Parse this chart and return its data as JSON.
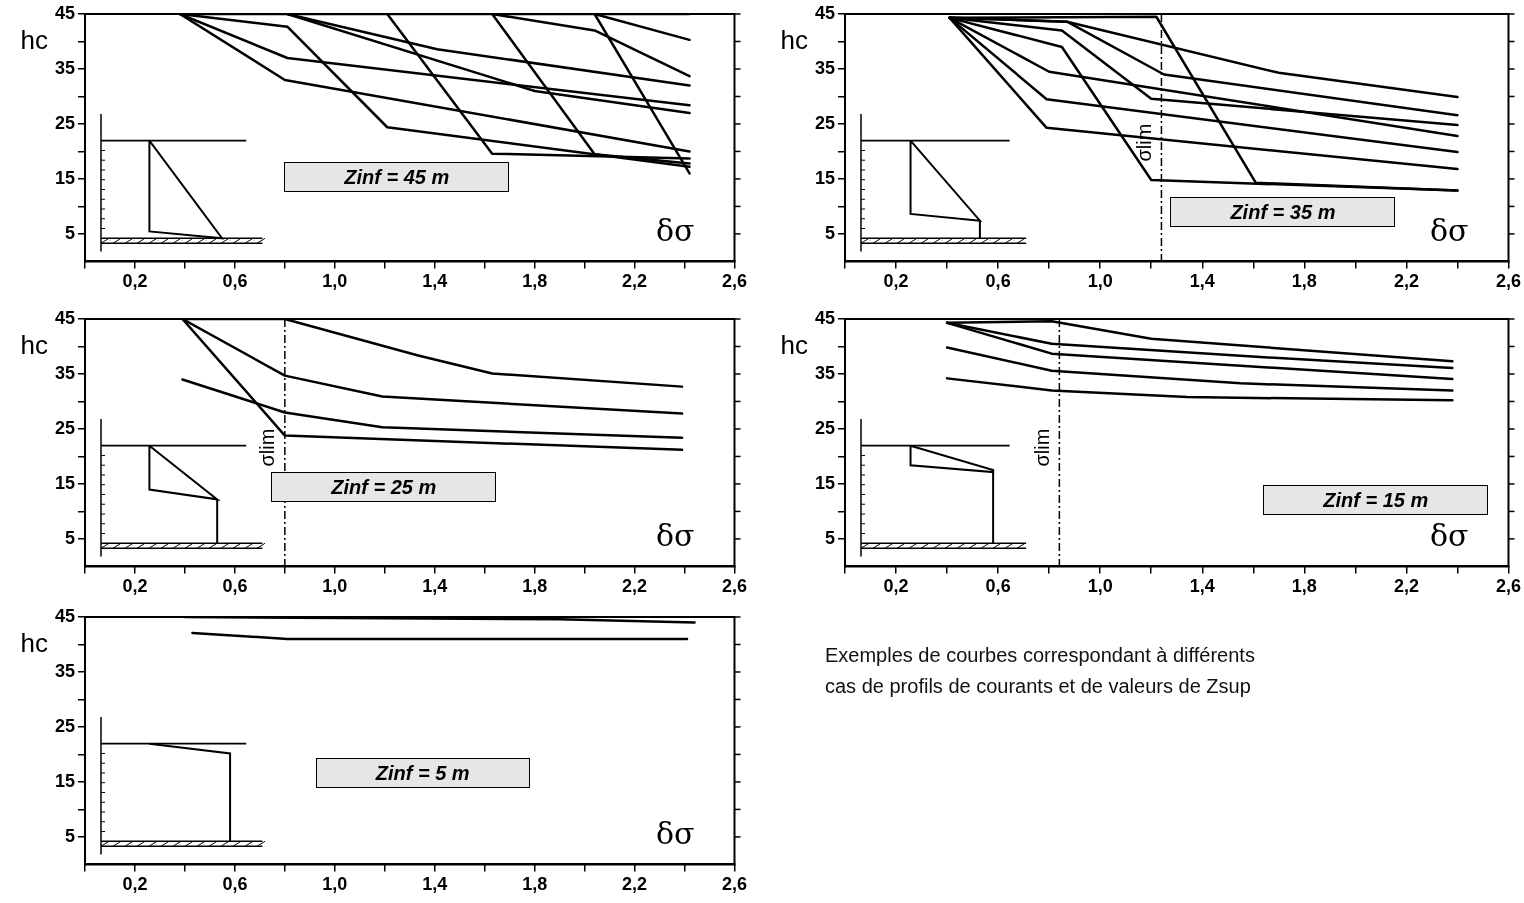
{
  "chart_data": [
    {
      "type": "line",
      "ylabel": "hc",
      "xlabel": "δσ",
      "annotations": [
        "Zinf = 45 m"
      ],
      "xlim": [
        0,
        2.6
      ],
      "ylim": [
        0,
        45
      ],
      "xticks": [
        {
          "value": 0,
          "label": null
        },
        {
          "value": 0.2,
          "label": "0,2"
        },
        {
          "value": 0.4,
          "label": null
        },
        {
          "value": 0.6,
          "label": "0,6"
        },
        {
          "value": 0.8,
          "label": null
        },
        {
          "value": 1.0,
          "label": "1,0"
        },
        {
          "value": 1.2,
          "label": null
        },
        {
          "value": 1.4,
          "label": "1,4"
        },
        {
          "value": 1.6,
          "label": null
        },
        {
          "value": 1.8,
          "label": "1,8"
        },
        {
          "value": 2.0,
          "label": null
        },
        {
          "value": 2.2,
          "label": "2,2"
        },
        {
          "value": 2.4,
          "label": null
        },
        {
          "value": 2.6,
          "label": "2,6"
        }
      ],
      "yticks": [
        5,
        {
          "value": 10,
          "label": null
        },
        15,
        {
          "value": 20,
          "label": null
        },
        25,
        {
          "value": 30,
          "label": null
        },
        35,
        {
          "value": 40,
          "label": null
        },
        45
      ],
      "series": [
        {
          "color": "#000000",
          "x": [
            0.38,
            2.42
          ],
          "values": [
            45,
            45
          ]
        },
        {
          "color": "#000000",
          "x": [
            0.38,
            0.81,
            2.42
          ],
          "values": [
            45,
            37,
            28.4
          ]
        },
        {
          "color": "#000000",
          "x": [
            0.81,
            1.41,
            2.42
          ],
          "values": [
            45,
            38.6,
            32
          ]
        },
        {
          "color": "#000000",
          "x": [
            0.81,
            1.8,
            2.42
          ],
          "values": [
            45,
            31,
            27
          ]
        },
        {
          "color": "#000000",
          "x": [
            1.63,
            2.04,
            2.42
          ],
          "values": [
            45,
            42,
            33.7
          ]
        },
        {
          "color": "#000000",
          "x": [
            2.04,
            2.42
          ],
          "values": [
            45,
            40.3
          ]
        },
        {
          "color": "#000000",
          "x": [
            0.38,
            0.8,
            2.42
          ],
          "values": [
            45,
            33,
            20
          ]
        },
        {
          "color": "#000000",
          "x": [
            0.38,
            0.81,
            1.21,
            2.42
          ],
          "values": [
            45,
            42.7,
            24.4,
            17.2
          ]
        },
        {
          "color": "#000000",
          "x": [
            1.21,
            1.63,
            2.42
          ],
          "values": [
            45,
            19.6,
            18.7
          ]
        },
        {
          "color": "#000000",
          "x": [
            1.63,
            2.04,
            2.42
          ],
          "values": [
            45,
            19.5,
            17.8
          ]
        },
        {
          "color": "#000000",
          "x": [
            2.04,
            2.42
          ],
          "values": [
            45,
            16
          ]
        }
      ]
    },
    {
      "type": "line",
      "ylabel": "hc",
      "xlabel": "δσ",
      "annotations": [
        "Zinf = 35 m"
      ],
      "xlim": [
        0,
        2.6
      ],
      "ylim": [
        0,
        45
      ],
      "xticks": [
        {
          "value": 0,
          "label": null
        },
        {
          "value": 0.2,
          "label": "0,2"
        },
        {
          "value": 0.4,
          "label": null
        },
        {
          "value": 0.6,
          "label": "0,6"
        },
        {
          "value": 0.8,
          "label": null
        },
        {
          "value": 1.0,
          "label": "1,0"
        },
        {
          "value": 1.2,
          "label": null
        },
        {
          "value": 1.4,
          "label": "1,4"
        },
        {
          "value": 1.6,
          "label": null
        },
        {
          "value": 1.8,
          "label": "1,8"
        },
        {
          "value": 2.0,
          "label": null
        },
        {
          "value": 2.2,
          "label": "2,2"
        },
        {
          "value": 2.4,
          "label": null
        },
        {
          "value": 2.6,
          "label": "2,6"
        }
      ],
      "yticks": [
        5,
        {
          "value": 10,
          "label": null
        },
        15,
        {
          "value": 20,
          "label": null
        },
        25,
        {
          "value": 30,
          "label": null
        },
        35,
        {
          "value": 40,
          "label": null
        },
        45
      ],
      "ref_lines": [
        {
          "axis": "x",
          "value": 1.24,
          "label": "σlim",
          "line_style": "dashed"
        }
      ],
      "series": [
        {
          "color": "#000000",
          "x": [
            0.41,
            0.79,
            2.4
          ],
          "values": [
            44.3,
            24.3,
            16.8
          ]
        },
        {
          "color": "#000000",
          "x": [
            0.41,
            0.79,
            2.4
          ],
          "values": [
            44.3,
            29.5,
            19.9
          ]
        },
        {
          "color": "#000000",
          "x": [
            0.41,
            0.8,
            2.4
          ],
          "values": [
            44.3,
            34.5,
            22.8
          ]
        },
        {
          "color": "#000000",
          "x": [
            0.41,
            0.85,
            1.2,
            2.4
          ],
          "values": [
            44.3,
            39,
            14.8,
            12.9
          ]
        },
        {
          "color": "#000000",
          "x": [
            0.41,
            0.85,
            1.2,
            2.4
          ],
          "values": [
            44.3,
            42,
            29.6,
            24.8
          ]
        },
        {
          "color": "#000000",
          "x": [
            0.41,
            0.87,
            1.25,
            2.4
          ],
          "values": [
            44.3,
            43.6,
            34,
            26.6
          ]
        },
        {
          "color": "#000000",
          "x": [
            0.41,
            1.22,
            1.61,
            2.4
          ],
          "values": [
            44.3,
            44.5,
            14.3,
            12.9
          ]
        },
        {
          "color": "#000000",
          "x": [
            0.41,
            0.87,
            1.7,
            2.4
          ],
          "values": [
            44.3,
            43.6,
            34.3,
            29.9
          ]
        }
      ]
    },
    {
      "type": "line",
      "ylabel": "hc",
      "xlabel": "δσ",
      "annotations": [
        "Zinf = 25 m"
      ],
      "xlim": [
        0,
        2.6
      ],
      "ylim": [
        0,
        45
      ],
      "xticks": [
        {
          "value": 0,
          "label": null
        },
        {
          "value": 0.2,
          "label": "0,2"
        },
        {
          "value": 0.4,
          "label": null
        },
        {
          "value": 0.6,
          "label": "0,6"
        },
        {
          "value": 0.8,
          "label": null
        },
        {
          "value": 1.0,
          "label": "1,0"
        },
        {
          "value": 1.2,
          "label": null
        },
        {
          "value": 1.4,
          "label": "1,4"
        },
        {
          "value": 1.6,
          "label": null
        },
        {
          "value": 1.8,
          "label": "1,8"
        },
        {
          "value": 2.0,
          "label": null
        },
        {
          "value": 2.2,
          "label": "2,2"
        },
        {
          "value": 2.4,
          "label": null
        },
        {
          "value": 2.6,
          "label": "2,6"
        }
      ],
      "yticks": [
        5,
        {
          "value": 10,
          "label": null
        },
        15,
        {
          "value": 20,
          "label": null
        },
        25,
        {
          "value": 30,
          "label": null
        },
        35,
        {
          "value": 40,
          "label": null
        },
        45
      ],
      "ref_lines": [
        {
          "axis": "x",
          "value": 0.8,
          "label": "σlim",
          "line_style": "dashed"
        }
      ],
      "series": [
        {
          "color": "#000000",
          "x": [
            0.39,
            0.8,
            2.39
          ],
          "values": [
            45,
            23.8,
            21.2
          ]
        },
        {
          "color": "#000000",
          "x": [
            0.39,
            0.8,
            1.19,
            2.39
          ],
          "values": [
            45,
            34.7,
            30.9,
            27.8
          ]
        },
        {
          "color": "#000000",
          "x": [
            0.39,
            0.8,
            1.19,
            2.39
          ],
          "values": [
            34,
            28,
            25.3,
            23.4
          ]
        },
        {
          "color": "#000000",
          "x": [
            0.39,
            0.8,
            1.33,
            1.63,
            2.39
          ],
          "values": [
            45,
            45,
            38.4,
            35.1,
            32.7
          ]
        }
      ]
    },
    {
      "type": "line",
      "ylabel": "hc",
      "xlabel": "δσ",
      "annotations": [
        "Zinf = 15 m"
      ],
      "xlim": [
        0,
        2.6
      ],
      "ylim": [
        0,
        45
      ],
      "xticks": [
        {
          "value": 0,
          "label": null
        },
        {
          "value": 0.2,
          "label": "0,2"
        },
        {
          "value": 0.4,
          "label": null
        },
        {
          "value": 0.6,
          "label": "0,6"
        },
        {
          "value": 0.8,
          "label": null
        },
        {
          "value": 1.0,
          "label": "1,0"
        },
        {
          "value": 1.2,
          "label": null
        },
        {
          "value": 1.4,
          "label": "1,4"
        },
        {
          "value": 1.6,
          "label": null
        },
        {
          "value": 1.8,
          "label": "1,8"
        },
        {
          "value": 2.0,
          "label": null
        },
        {
          "value": 2.2,
          "label": "2,2"
        },
        {
          "value": 2.4,
          "label": null
        },
        {
          "value": 2.6,
          "label": "2,6"
        }
      ],
      "yticks": [
        5,
        {
          "value": 10,
          "label": null
        },
        15,
        {
          "value": 20,
          "label": null
        },
        25,
        {
          "value": 30,
          "label": null
        },
        35,
        {
          "value": 40,
          "label": null
        },
        45
      ],
      "ref_lines": [
        {
          "axis": "x",
          "value": 0.84,
          "label": "σlim",
          "line_style": "dashed"
        }
      ],
      "series": [
        {
          "color": "#000000",
          "x": [
            0.4,
            0.81,
            1.34,
            2.38
          ],
          "values": [
            34.2,
            32,
            30.8,
            30.2
          ]
        },
        {
          "color": "#000000",
          "x": [
            0.4,
            0.81,
            1.55,
            2.38
          ],
          "values": [
            39.8,
            35.6,
            33.3,
            32
          ]
        },
        {
          "color": "#000000",
          "x": [
            0.4,
            0.81,
            1.55,
            2.38
          ],
          "values": [
            44.3,
            38.7,
            36.5,
            34.1
          ]
        },
        {
          "color": "#000000",
          "x": [
            0.4,
            0.81,
            1.55,
            2.38
          ],
          "values": [
            44.3,
            40.5,
            38.3,
            36.1
          ]
        },
        {
          "color": "#000000",
          "x": [
            0.4,
            0.81,
            1.2,
            2.38
          ],
          "values": [
            44.3,
            44.6,
            41.4,
            37.3
          ]
        }
      ]
    },
    {
      "type": "line",
      "ylabel": "hc",
      "xlabel": "δσ",
      "annotations": [
        "Zinf = 5 m"
      ],
      "xlim": [
        0,
        2.6
      ],
      "ylim": [
        0,
        45
      ],
      "xticks": [
        {
          "value": 0,
          "label": null
        },
        {
          "value": 0.2,
          "label": "0,2"
        },
        {
          "value": 0.4,
          "label": null
        },
        {
          "value": 0.6,
          "label": "0,6"
        },
        {
          "value": 0.8,
          "label": null
        },
        {
          "value": 1.0,
          "label": "1,0"
        },
        {
          "value": 1.2,
          "label": null
        },
        {
          "value": 1.4,
          "label": "1,4"
        },
        {
          "value": 1.6,
          "label": null
        },
        {
          "value": 1.8,
          "label": "1,8"
        },
        {
          "value": 2.0,
          "label": null
        },
        {
          "value": 2.2,
          "label": "2,2"
        },
        {
          "value": 2.4,
          "label": null
        },
        {
          "value": 2.6,
          "label": "2,6"
        }
      ],
      "yticks": [
        5,
        {
          "value": 10,
          "label": null
        },
        15,
        {
          "value": 20,
          "label": null
        },
        25,
        {
          "value": 30,
          "label": null
        },
        35,
        {
          "value": 40,
          "label": null
        },
        45
      ],
      "series": [
        {
          "color": "#000000",
          "x": [
            0.43,
            0.81,
            2.41
          ],
          "values": [
            42.1,
            41,
            41
          ]
        },
        {
          "color": "#000000",
          "x": [
            0.4,
            1.9,
            2.44
          ],
          "values": [
            45,
            44.6,
            44
          ]
        }
      ]
    },
    {
      "type": "other",
      "annotations": [
        "Exemples de courbes correspondant à différents cas de profils de courants et de valeurs de Zsup"
      ]
    }
  ]
}
